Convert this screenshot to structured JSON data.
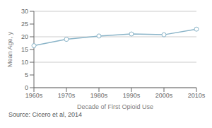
{
  "chart_data": {
    "type": "line",
    "categories": [
      "1960s",
      "1970s",
      "1980s",
      "1990s",
      "2000s",
      "2010s"
    ],
    "values": [
      16.5,
      19.0,
      20.3,
      21.1,
      20.8,
      23.0
    ],
    "color": "#8ab4c8",
    "marker": "circle",
    "xlabel": "Decade of First Opioid Use",
    "ylabel": "Mean Age, y",
    "ylim": [
      0,
      30
    ],
    "yticks": [
      0,
      5,
      10,
      15,
      20,
      25,
      30
    ],
    "grid": true,
    "annotations": [
      "Source: Cicero et al, 2014"
    ]
  }
}
